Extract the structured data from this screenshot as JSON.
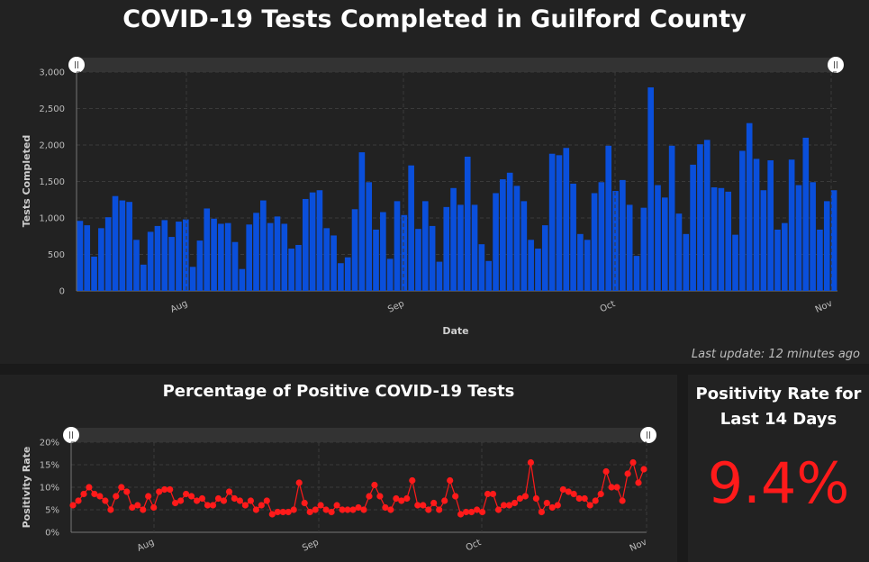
{
  "tests_panel": {
    "title": "COVID-19 Tests Completed in Guilford County",
    "last_update": "Last update: 12 minutes ago"
  },
  "positivity_panel": {
    "title": "Percentage of Positive COVID-19 Tests"
  },
  "rate_panel": {
    "title": "Positivity Rate for Last 14 Days",
    "value": "9.4%"
  },
  "colors": {
    "bars": "#0a4fdb",
    "line": "#ff1a1a",
    "rate": "#ff1a1a"
  },
  "chart_data": [
    {
      "type": "bar",
      "title": "COVID-19 Tests Completed in Guilford County",
      "xlabel": "Date",
      "ylabel": "Tests Completed",
      "ylim": [
        0,
        3000
      ],
      "yticks": [
        "0",
        "500",
        "1,000",
        "1,500",
        "2,000",
        "2,500",
        "3,000"
      ],
      "xticks": [
        "Aug",
        "Sep",
        "Oct",
        "Nov"
      ],
      "grid": true,
      "values": [
        960,
        900,
        470,
        860,
        1010,
        1300,
        1240,
        1220,
        700,
        360,
        810,
        890,
        970,
        740,
        950,
        980,
        330,
        690,
        1130,
        990,
        920,
        930,
        670,
        300,
        910,
        1070,
        1240,
        930,
        1020,
        920,
        580,
        630,
        1260,
        1350,
        1380,
        860,
        760,
        380,
        460,
        1120,
        1900,
        1490,
        840,
        1080,
        440,
        1230,
        1040,
        1720,
        850,
        1230,
        890,
        400,
        1150,
        1410,
        1180,
        1840,
        1180,
        640,
        410,
        1340,
        1530,
        1620,
        1440,
        1230,
        700,
        580,
        900,
        1880,
        1860,
        1960,
        1470,
        780,
        700,
        1340,
        1490,
        1990,
        1370,
        1520,
        1180,
        480,
        1140,
        2790,
        1450,
        1280,
        1990,
        1060,
        780,
        1730,
        2010,
        2070,
        1420,
        1410,
        1360,
        770,
        1920,
        2300,
        1810,
        1380,
        1790,
        840,
        930,
        1800,
        1450,
        2100,
        1490,
        840,
        1230,
        1380
      ]
    },
    {
      "type": "line",
      "title": "Percentage of Positive COVID-19 Tests",
      "ylabel": "Positivity Rate",
      "ylim": [
        0,
        20
      ],
      "yticks": [
        "0%",
        "5%",
        "10%",
        "15%",
        "20%"
      ],
      "xticks": [
        "Aug",
        "Sep",
        "Oct",
        "Nov"
      ],
      "values": [
        6,
        7,
        8.5,
        10,
        8.5,
        8,
        7,
        5,
        8,
        10,
        9,
        5.5,
        6,
        5,
        8,
        5.5,
        9,
        9.5,
        9.5,
        6.5,
        7,
        8.5,
        8,
        7,
        7.5,
        6,
        6,
        7.5,
        7,
        9,
        7.5,
        7,
        6,
        7,
        5,
        6,
        7,
        4,
        4.5,
        4.5,
        4.5,
        5,
        11,
        6.5,
        4.5,
        5,
        6,
        5,
        4.5,
        6,
        5,
        5,
        5,
        5.5,
        5,
        8,
        10.5,
        8,
        5.5,
        5,
        7.5,
        7,
        7.5,
        11.5,
        6,
        6,
        5,
        6.5,
        5,
        7,
        11.5,
        8,
        4,
        4.5,
        4.5,
        5,
        4.5,
        8.5,
        8.5,
        5,
        6,
        6,
        6.5,
        7.5,
        8,
        15.5,
        7.5,
        4.5,
        6.5,
        5.5,
        6,
        9.5,
        9,
        8.5,
        7.5,
        7.5,
        6,
        7,
        8.5,
        13.5,
        10,
        10,
        7,
        13,
        15.5,
        11,
        14
      ]
    }
  ]
}
